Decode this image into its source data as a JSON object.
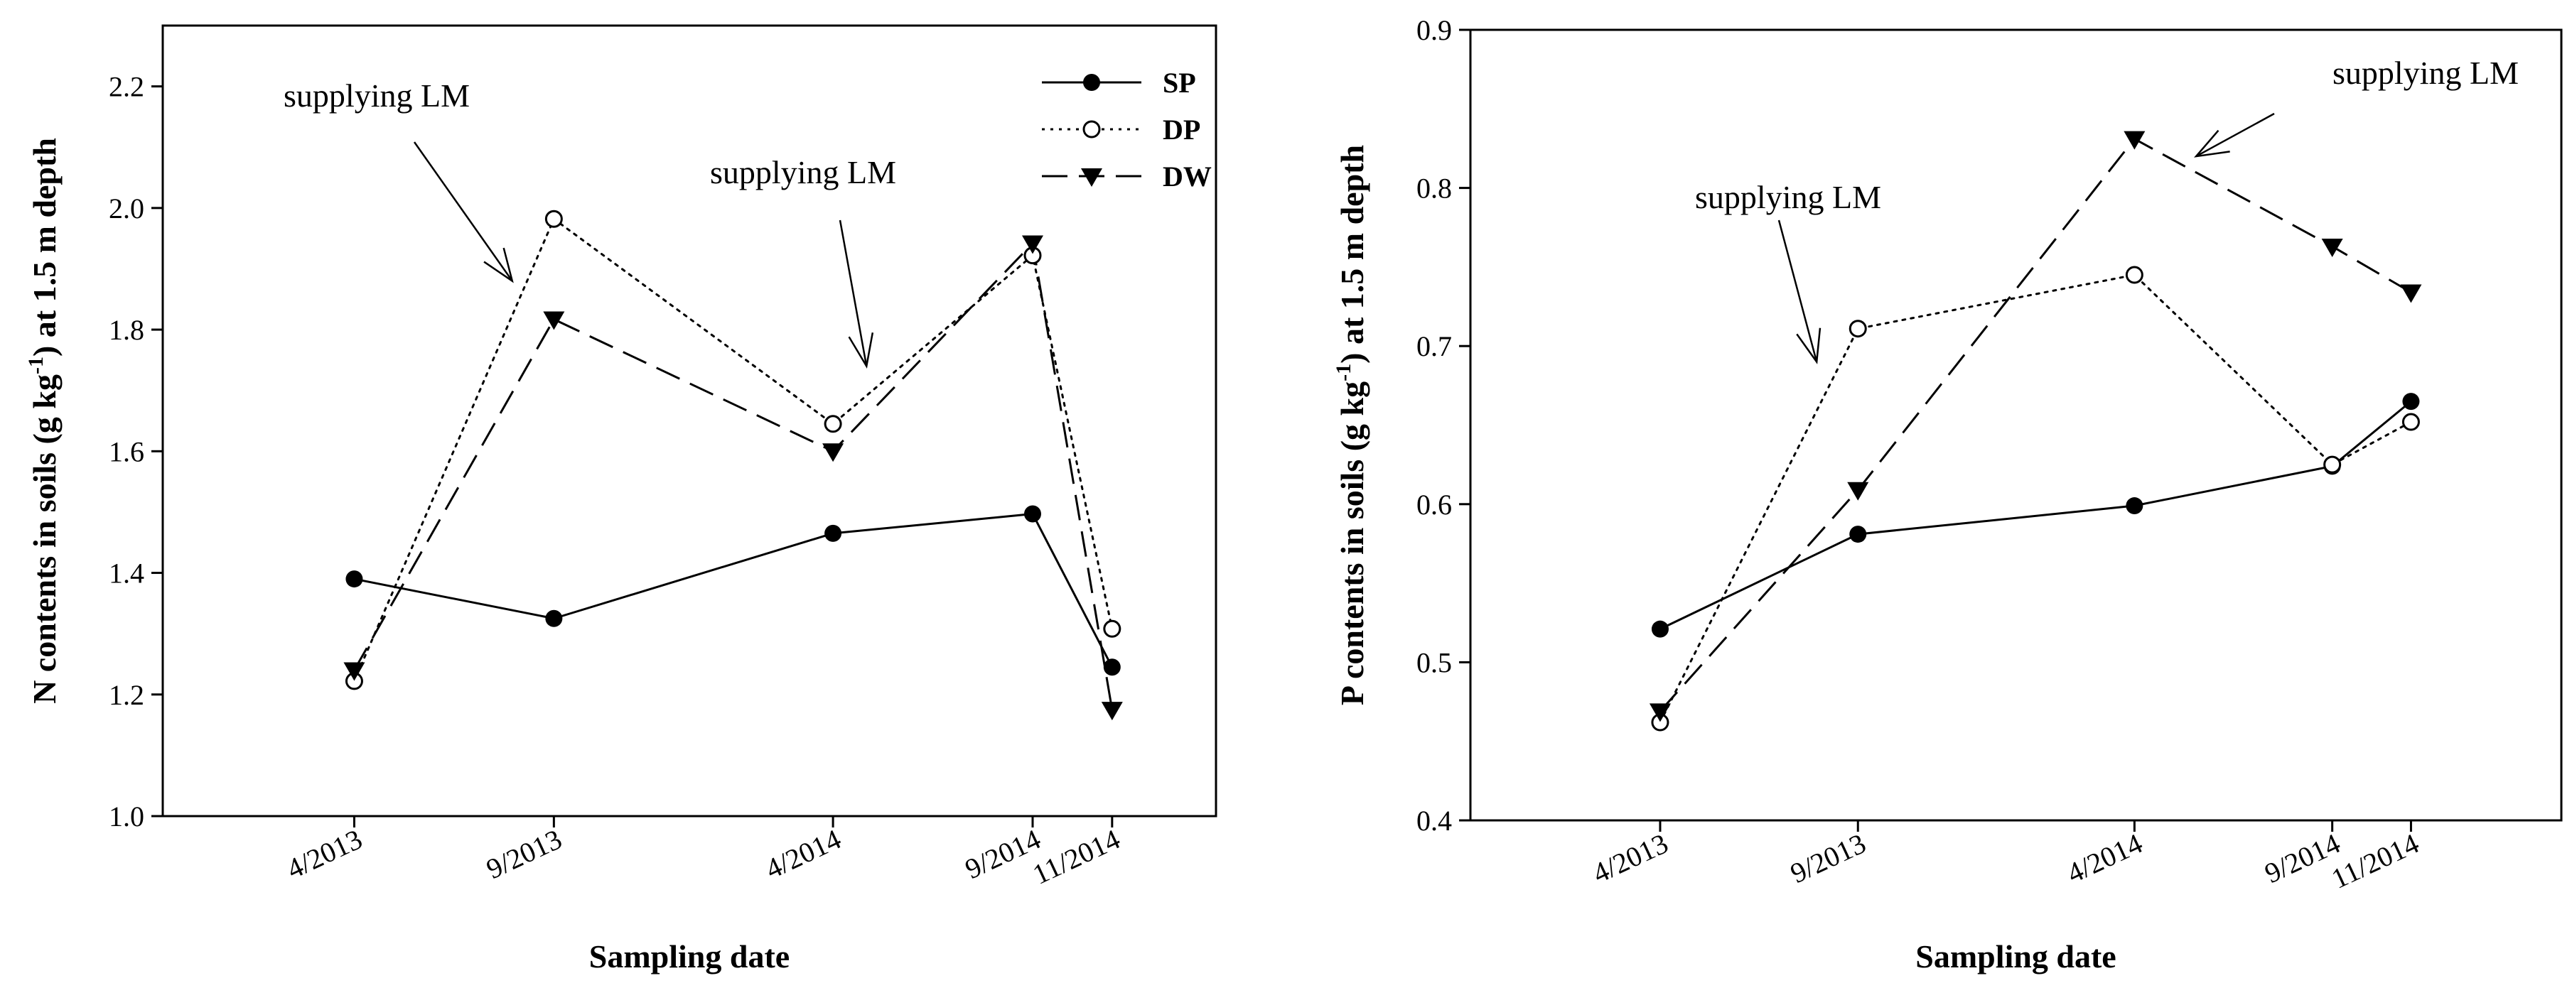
{
  "chart_data": [
    {
      "type": "line",
      "panel": "left",
      "xlabel": "Sampling date",
      "ylabel": "N contents in soils (g kg-1) at 1.5 m depth",
      "ylabel_parts": {
        "pre": "N contents in soils (g kg",
        "sup": "-1",
        "post": ") at 1.5 m depth"
      },
      "x_date_range": [
        2012.85,
        2015.05
      ],
      "ylim": [
        1.0,
        2.3
      ],
      "yticks": [
        "1.0",
        "1.2",
        "1.4",
        "1.6",
        "1.8",
        "2.0",
        "2.2"
      ],
      "x_categories": [
        "4/2013",
        "9/2013",
        "4/2014",
        "9/2014",
        "11/2014"
      ],
      "x_positions": [
        2013.25,
        2013.667,
        2014.25,
        2014.667,
        2014.833
      ],
      "series": [
        {
          "name": "SP",
          "style": "solid",
          "marker": "filled-circle",
          "values": [
            1.39,
            1.325,
            1.465,
            1.497,
            1.245
          ]
        },
        {
          "name": "DP",
          "style": "dotted",
          "marker": "open-circle",
          "values": [
            1.222,
            1.982,
            1.645,
            1.922,
            1.308
          ]
        },
        {
          "name": "DW",
          "style": "dashed",
          "marker": "filled-triangle-down",
          "values": [
            1.24,
            1.817,
            1.6,
            1.942,
            1.175
          ]
        }
      ],
      "legend": {
        "placement": "top-right",
        "entries": [
          "SP",
          "DP",
          "DW"
        ]
      },
      "annotations": [
        {
          "text": "supplying LM",
          "target_x": 2013.58,
          "target_y": 1.88
        },
        {
          "text": "supplying LM",
          "target_x": 2014.32,
          "target_y": 1.74
        }
      ]
    },
    {
      "type": "line",
      "panel": "right",
      "xlabel": "Sampling date",
      "ylabel": "P contents in soils (g kg-1) at 1.5 m depth",
      "ylabel_parts": {
        "pre": "P contents in soils (g kg",
        "sup": "-1",
        "post": ") at 1.5 m depth"
      },
      "x_date_range": [
        2012.85,
        2015.15
      ],
      "ylim": [
        0.4,
        0.9
      ],
      "yticks": [
        "0.4",
        "0.5",
        "0.6",
        "0.7",
        "0.8",
        "0.9"
      ],
      "x_categories": [
        "4/2013",
        "9/2013",
        "4/2014",
        "9/2014",
        "11/2014"
      ],
      "x_positions": [
        2013.25,
        2013.667,
        2014.25,
        2014.667,
        2014.833
      ],
      "series": [
        {
          "name": "SP",
          "style": "solid",
          "marker": "filled-circle",
          "values": [
            0.521,
            0.581,
            0.599,
            0.624,
            0.665
          ]
        },
        {
          "name": "DP",
          "style": "dotted",
          "marker": "open-circle",
          "values": [
            0.462,
            0.711,
            0.745,
            0.625,
            0.652
          ]
        },
        {
          "name": "DW",
          "style": "dashed",
          "marker": "filled-triangle-down",
          "values": [
            0.469,
            0.609,
            0.831,
            0.763,
            0.734
          ]
        }
      ],
      "annotations": [
        {
          "text": "supplying LM",
          "target_x": 2013.58,
          "target_y": 0.69
        },
        {
          "text": "supplying LM",
          "target_x": 2014.38,
          "target_y": 0.82
        }
      ]
    }
  ]
}
